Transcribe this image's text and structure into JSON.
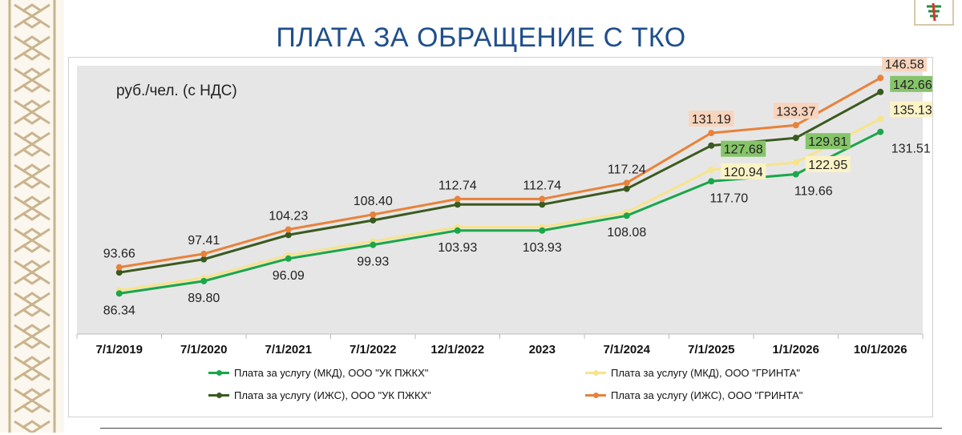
{
  "title": "ПЛАТА ЗА ОБРАЩЕНИЕ С ТКО",
  "ylabel": "руб./чел. (с НДС)",
  "colors": {
    "title": "#1f4e8c",
    "ornament": "#c9b48c",
    "plot_bg": "#e6e6e6",
    "mkd_pzhkh": "#1aa64b",
    "mkd_grinta": "#f7e38a",
    "izhs_pzhkh": "#3a5a1e",
    "izhs_grinta": "#e8823a"
  },
  "icons": {
    "ornament": "ornament-border",
    "logo": "logo-icon"
  },
  "chart_data": {
    "type": "line",
    "categories": [
      "7/1/2019",
      "7/1/2020",
      "7/1/2021",
      "7/1/2022",
      "12/1/2022",
      "2023",
      "7/1/2024",
      "7/1/2025",
      "1/1/2026",
      "10/1/2026"
    ],
    "ylim": [
      75,
      150
    ],
    "grid": false,
    "legend_position": "bottom",
    "series": [
      {
        "name": "Плата за услугу (МКД), ООО \"УК ПЖКХ\"",
        "color": "#1aa64b",
        "values": [
          86.34,
          89.8,
          96.09,
          99.93,
          103.93,
          103.93,
          108.08,
          117.7,
          119.66,
          131.51
        ],
        "labels": [
          "86.34",
          "89.80",
          "96.09",
          "99.93",
          "103.93",
          "103.93",
          "108.08",
          "117.70",
          "119.66",
          "131.51"
        ]
      },
      {
        "name": "Плата за услугу (МКД), ООО \"ГРИНТА\"",
        "color": "#f7e38a",
        "values": [
          87.2,
          90.7,
          97.0,
          100.9,
          104.9,
          104.9,
          109.0,
          120.94,
          122.95,
          135.13
        ],
        "labels": [
          "",
          "",
          "",
          "",
          "",
          "",
          "",
          "120.94",
          "122.95",
          "135.13"
        ]
      },
      {
        "name": "Плата за услугу (ИЖС), ООО \"УК ПЖКХ\"",
        "color": "#3a5a1e",
        "values": [
          92.2,
          95.9,
          102.7,
          106.8,
          111.2,
          111.2,
          115.6,
          127.68,
          129.81,
          142.66
        ],
        "labels": [
          "",
          "",
          "",
          "",
          "",
          "",
          "",
          "127.68",
          "129.81",
          "142.66"
        ]
      },
      {
        "name": "Плата за услугу (ИЖС), ООО \"ГРИНТА\"",
        "color": "#e8823a",
        "values": [
          93.66,
          97.41,
          104.23,
          108.4,
          112.74,
          112.74,
          117.24,
          131.19,
          133.37,
          146.58
        ],
        "labels": [
          "93.66",
          "97.41",
          "104.23",
          "108.40",
          "112.74",
          "112.74",
          "117.24",
          "131.19",
          "133.37",
          "146.58"
        ]
      }
    ]
  },
  "legend": {
    "items": [
      "Плата за услугу (МКД), ООО \"УК ПЖКХ\"",
      "Плата за услугу (МКД), ООО \"ГРИНТА\"",
      "Плата за услугу (ИЖС), ООО \"УК ПЖКХ\"",
      "Плата за услугу (ИЖС), ООО \"ГРИНТА\""
    ]
  }
}
